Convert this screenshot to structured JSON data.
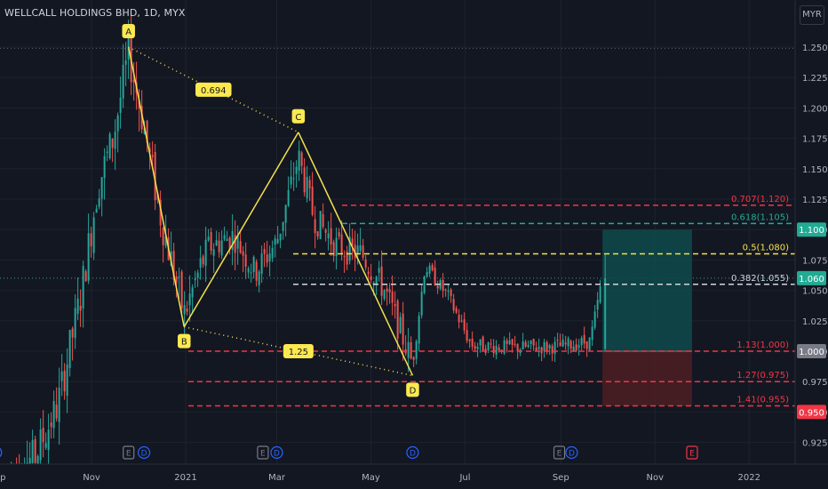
{
  "header": {
    "title": "WELLCALL HOLDINGS BHD, 1D, MYX",
    "currency_button": "MYR"
  },
  "colors": {
    "background": "#131722",
    "up": "#26a69a",
    "down": "#ef5350",
    "pattern": "#f5e04c",
    "fib_red": "#f23645",
    "fib_teal": "#22ab94",
    "fib_yellow": "#f5e04c",
    "fib_white": "#d1d4dc",
    "profit_zone": "#0e4a4a",
    "loss_zone": "#4a1e24",
    "label_bg": "#fce94f",
    "event_blue": "#2962ff",
    "event_red": "#f23645",
    "event_gray": "#787b86"
  },
  "chart_data": {
    "type": "candlestick",
    "ylim": [
      0.905,
      1.265
    ],
    "y_ticks": [
      "1.250",
      "1.225",
      "1.200",
      "1.175",
      "1.150",
      "1.125",
      "1.100",
      "1.075",
      "1.050",
      "1.025",
      "1.000",
      "0.975",
      "0.950",
      "0.925"
    ],
    "x_ticks": [
      "Sep",
      "Nov",
      "2021",
      "Mar",
      "May",
      "Jul",
      "Sep",
      "Nov",
      "2022"
    ],
    "price_tags": [
      {
        "label": "1.100",
        "value": 1.1,
        "style": "teal"
      },
      {
        "label": "1.060",
        "value": 1.06,
        "style": "teal"
      },
      {
        "label": "1.000",
        "value": 1.0,
        "style": "gray"
      },
      {
        "label": "0.950",
        "value": 0.95,
        "style": "red"
      }
    ],
    "harmonic_pattern": {
      "points": [
        {
          "label": "A",
          "date": "2020-11-25",
          "price": 1.25
        },
        {
          "label": "B",
          "date": "2020-12-31",
          "price": 1.02
        },
        {
          "label": "C",
          "date": "2021-03-15",
          "price": 1.18
        },
        {
          "label": "D",
          "date": "2021-05-28",
          "price": 0.98
        }
      ],
      "ratios": [
        {
          "label": "0.694",
          "between": "A-C"
        },
        {
          "label": "1.25",
          "between": "B-D"
        }
      ]
    },
    "fib_levels": [
      {
        "label": "0.707(1.120)",
        "price": 1.12,
        "style": "red"
      },
      {
        "label": "0.618(1.105)",
        "price": 1.105,
        "style": "teal"
      },
      {
        "label": "0.5(1.080)",
        "price": 1.08,
        "style": "yellow"
      },
      {
        "label": "0.382(1.055)",
        "price": 1.055,
        "style": "white"
      },
      {
        "label": "1.13(1.000)",
        "price": 1.0,
        "style": "red"
      },
      {
        "label": "1.27(0.975)",
        "price": 0.975,
        "style": "red"
      },
      {
        "label": "1.41(0.955)",
        "price": 0.955,
        "style": "red"
      }
    ],
    "position": {
      "entry": 1.0,
      "target": 1.1,
      "stop": 0.955,
      "start": "2021-09-28",
      "end": "2021-11-25"
    },
    "events": [
      {
        "date": "2020-08-31",
        "kind": "D"
      },
      {
        "date": "2020-11-25",
        "kind": "E"
      },
      {
        "date": "2020-12-05",
        "kind": "D"
      },
      {
        "date": "2021-02-20",
        "kind": "E"
      },
      {
        "date": "2021-03-01",
        "kind": "D"
      },
      {
        "date": "2021-05-28",
        "kind": "D"
      },
      {
        "date": "2021-08-31",
        "kind": "E"
      },
      {
        "date": "2021-09-08",
        "kind": "D"
      },
      {
        "date": "2021-11-25",
        "kind": "E"
      }
    ],
    "last_price": 1.06
  }
}
